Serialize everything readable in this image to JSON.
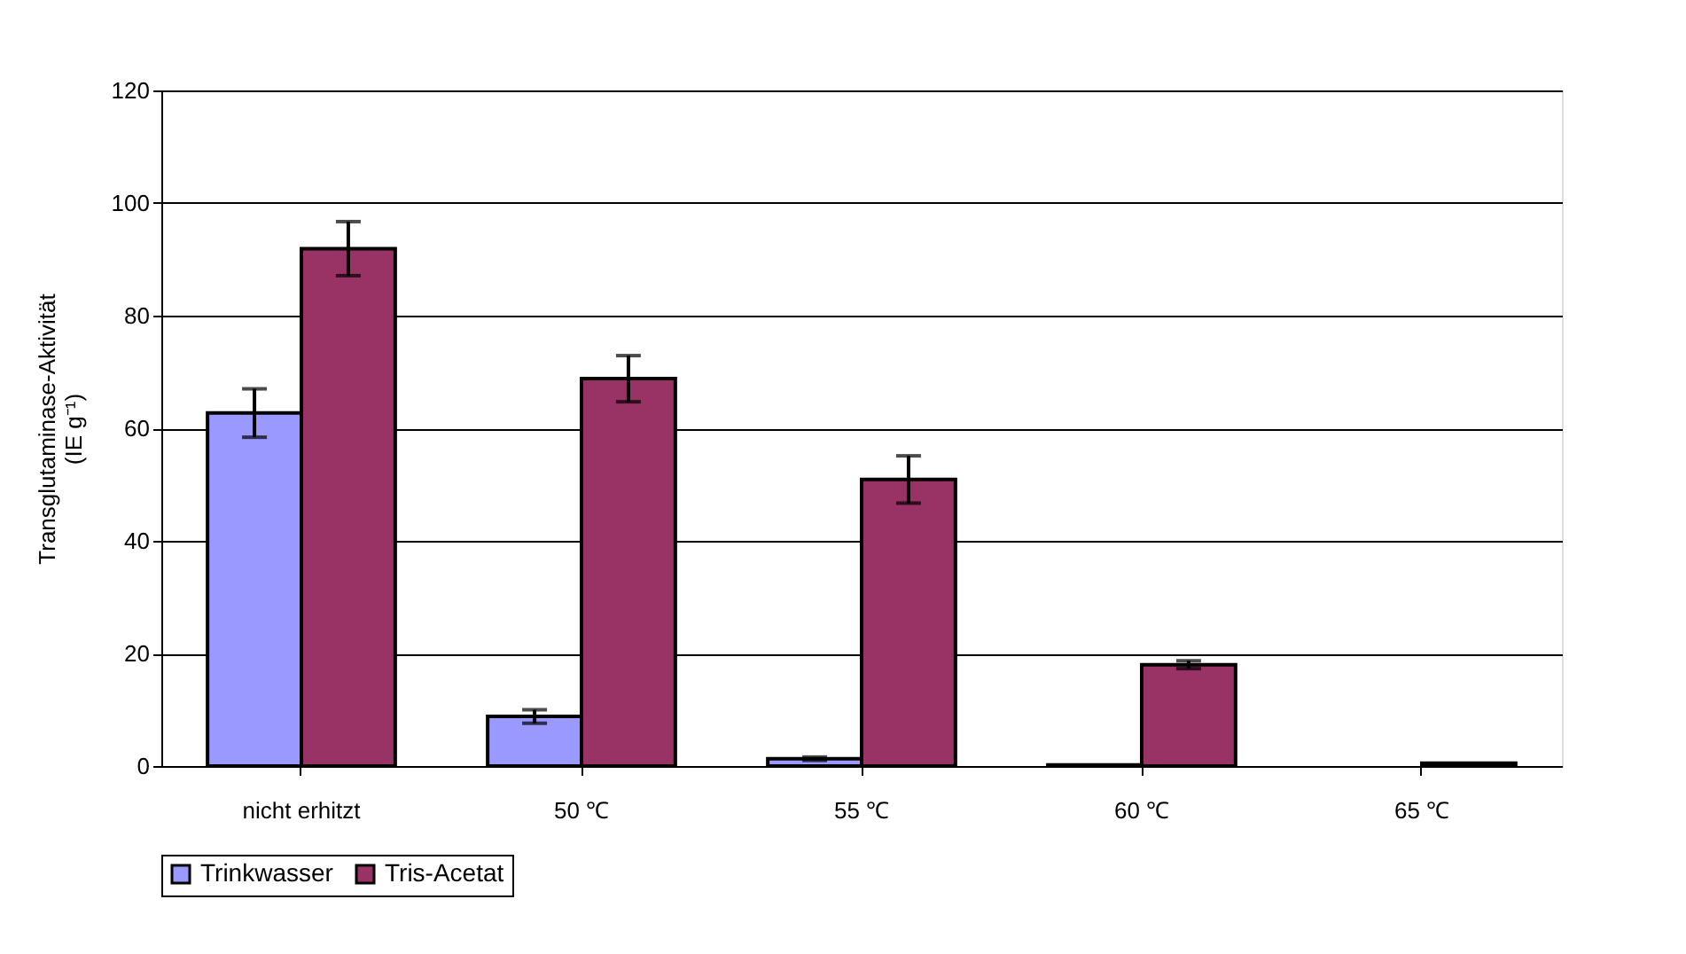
{
  "chart_data": {
    "type": "bar",
    "ylabel": "Transglutaminase-Aktivität\n(IE g⁻¹)",
    "categories": [
      "nicht erhitzt",
      "50 ℃",
      "55 ℃",
      "60 ℃",
      "65 ℃"
    ],
    "series": [
      {
        "name": "Trinkwasser",
        "color": "#9999ff",
        "values": [
          62.7,
          8.8,
          1.3,
          0.2,
          null
        ],
        "errors": [
          4.3,
          1.2,
          0.3,
          null,
          null
        ]
      },
      {
        "name": "Tris-Acetat",
        "color": "#993366",
        "values": [
          91.9,
          68.8,
          50.9,
          18,
          0.5
        ],
        "errors": [
          4.8,
          4.1,
          4.2,
          0.7,
          null
        ]
      }
    ],
    "ylim": [
      0,
      120
    ],
    "yticks": [
      0,
      20,
      40,
      60,
      80,
      100,
      120
    ],
    "grid": "y",
    "legend": "bottom"
  }
}
